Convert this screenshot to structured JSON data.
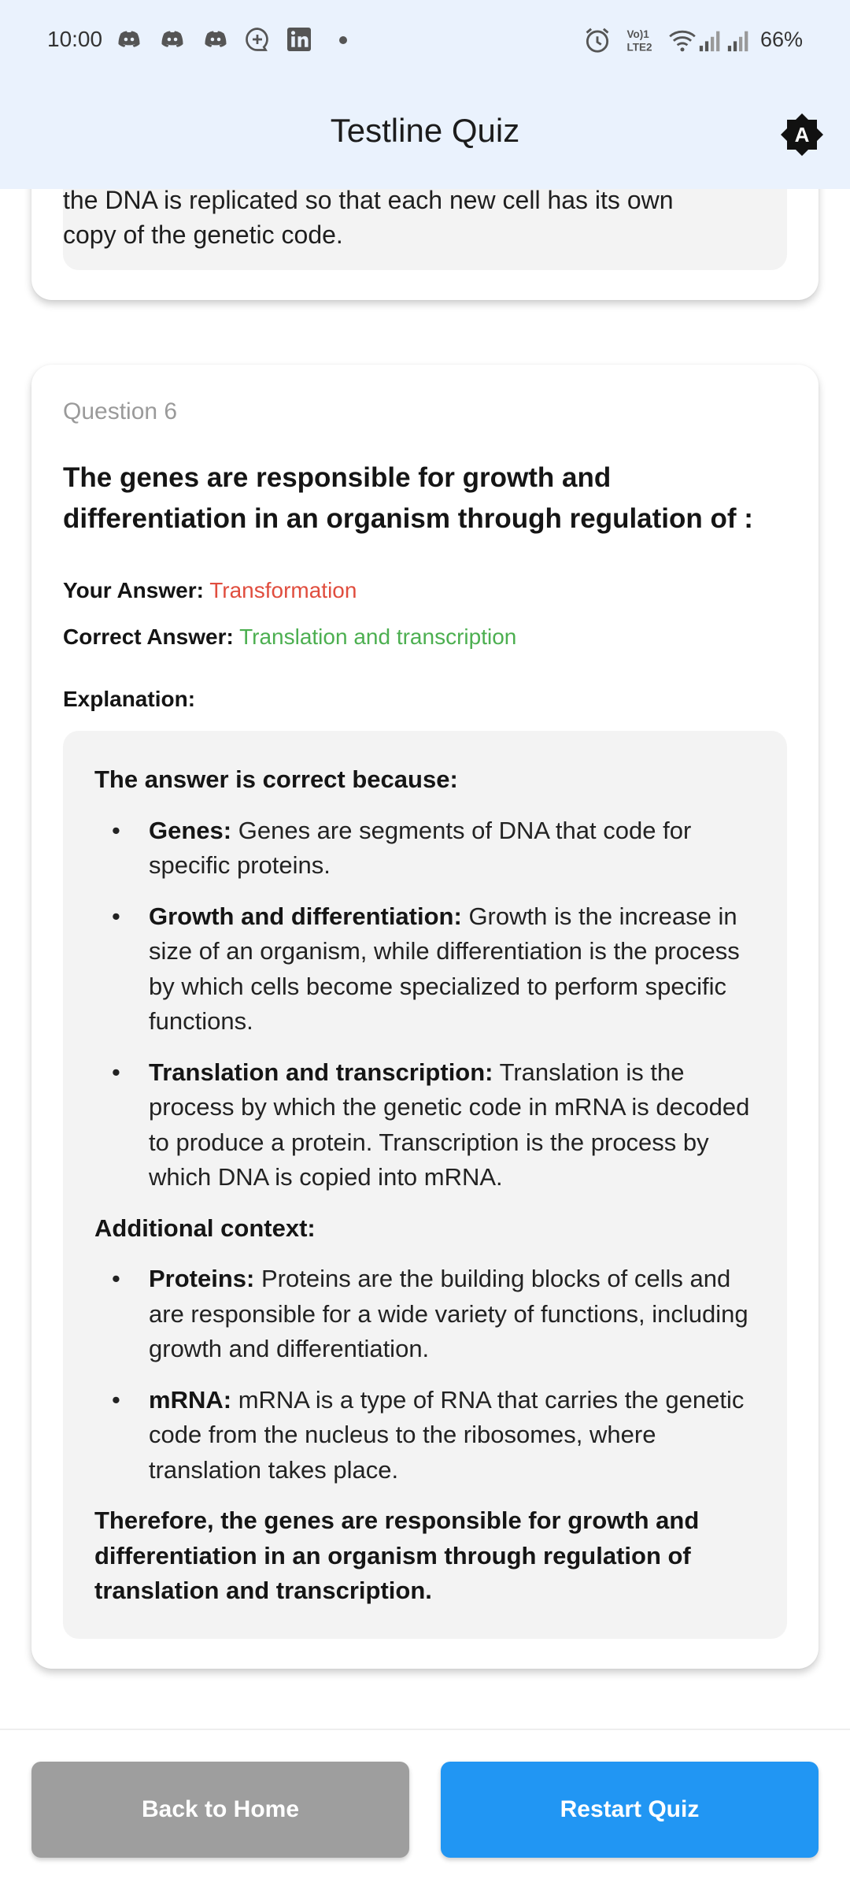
{
  "status_bar": {
    "time": "10:00",
    "battery": "66%",
    "icons": [
      "discord-icon",
      "discord-icon",
      "discord-icon",
      "chat-plus-icon",
      "linkedin-icon",
      "alarm-icon",
      "volte-icon",
      "wifi-icon",
      "signal-icon",
      "signal-icon"
    ]
  },
  "app_bar": {
    "title": "Testline Quiz",
    "theme_icon": "brightness-auto-icon",
    "theme_letter": "A"
  },
  "previous_card": {
    "explanation_cut_line": "the DNA is replicated so that each new cell has its own",
    "explanation_last_line": "copy of the genetic code."
  },
  "question": {
    "number_label": "Question 6",
    "text": "The genes are responsible for growth and differentiation in an organism through regulation of :",
    "your_answer_label": "Your Answer:",
    "your_answer": "Transformation",
    "correct_answer_label": "Correct Answer:",
    "correct_answer": "Translation and transcription",
    "explanation_label": "Explanation:"
  },
  "explanation": {
    "heading": "The answer is correct because:",
    "points": [
      {
        "term": "Genes:",
        "text": "Genes are segments of DNA that code for specific proteins."
      },
      {
        "term": "Growth and differentiation:",
        "text": "Growth is the increase in size of an organism, while differentiation is the process by which cells become specialized to perform specific functions."
      },
      {
        "term": "Translation and transcription:",
        "text": "Translation is the process by which the genetic code in mRNA is decoded to produce a protein. Transcription is the process by which DNA is copied into mRNA."
      }
    ],
    "context_heading": "Additional context:",
    "context_points": [
      {
        "term": "Proteins:",
        "text": "Proteins are the building blocks of cells and are responsible for a wide variety of functions, including growth and differentiation."
      },
      {
        "term": "mRNA:",
        "text": "mRNA is a type of RNA that carries the genetic code from the nucleus to the ribosomes, where translation takes place."
      }
    ],
    "conclusion": "Therefore, the genes are responsible for growth and differentiation in an organism through regulation of translation and transcription.",
    "bullet": "•"
  },
  "bottom_bar": {
    "back_label": "Back to Home",
    "restart_label": "Restart Quiz"
  },
  "colors": {
    "app_bar_bg": "#eaf2fd",
    "wrong_answer": "#e04d3e",
    "correct_answer": "#4caf50",
    "restart_button": "#2196f3",
    "back_button": "#9e9e9e"
  }
}
